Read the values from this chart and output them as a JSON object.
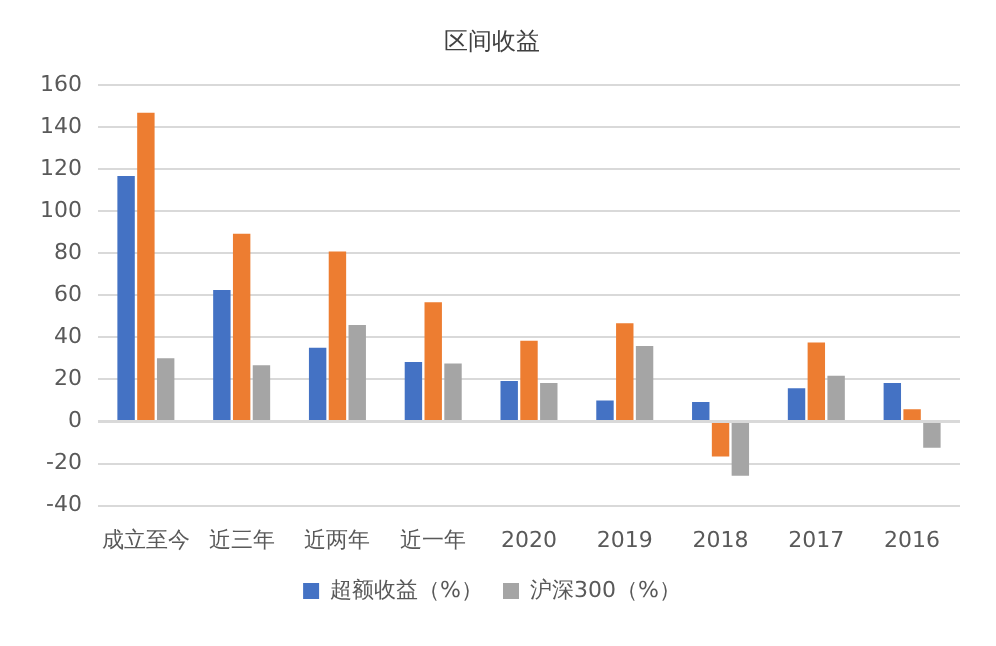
{
  "chart_data": {
    "type": "bar",
    "title": "区间收益",
    "categories": [
      "成立至今",
      "近三年",
      "近两年",
      "近一年",
      "2020",
      "2019",
      "2018",
      "2017",
      "2016"
    ],
    "series": [
      {
        "name": "超额收益（%）",
        "color": "#4472c4",
        "values": [
          116.7,
          62.5,
          35,
          28.3,
          19.2,
          10,
          9.2,
          15.8,
          18.3
        ]
      },
      {
        "color": "#ed7d31",
        "values": [
          146.7,
          89.2,
          80.8,
          56.7,
          38.3,
          46.7,
          -16.7,
          37.5,
          5.8
        ]
      },
      {
        "name": "沪深300（%）",
        "color": "#a5a5a5",
        "values": [
          30,
          26.7,
          45.8,
          27.5,
          18.3,
          35.8,
          -25.8,
          21.7,
          -12.5
        ]
      }
    ],
    "ylim": [
      -40,
      160
    ],
    "yticks": [
      -40,
      -20,
      0,
      20,
      40,
      60,
      80,
      100,
      120,
      140,
      160
    ],
    "grid": "y",
    "legend": "bottom"
  }
}
